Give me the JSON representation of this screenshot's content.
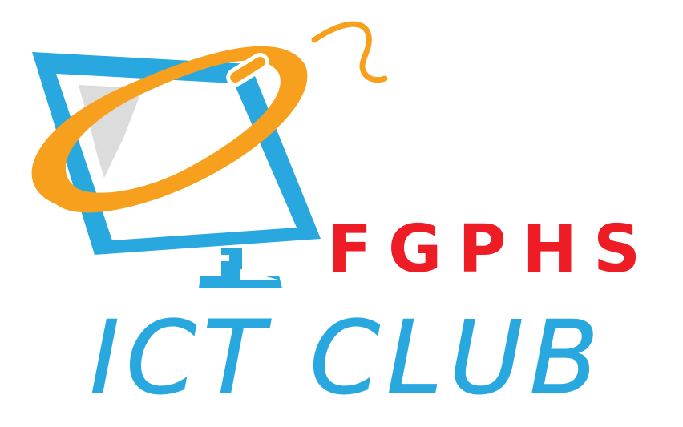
{
  "brand": {
    "top_text": "FGPHS",
    "bottom_text": "ICT CLUB"
  },
  "colors": {
    "monitor_blue": "#29a8e0",
    "ring_orange": "#f7a01d",
    "screen_gray": "#dcdcdc",
    "top_text_red": "#ee1c25",
    "bottom_text_blue": "#29a8e0"
  },
  "icons": {
    "monitor": "monitor-icon",
    "ring": "orbit-ring-icon",
    "cable": "mouse-cable-icon"
  }
}
